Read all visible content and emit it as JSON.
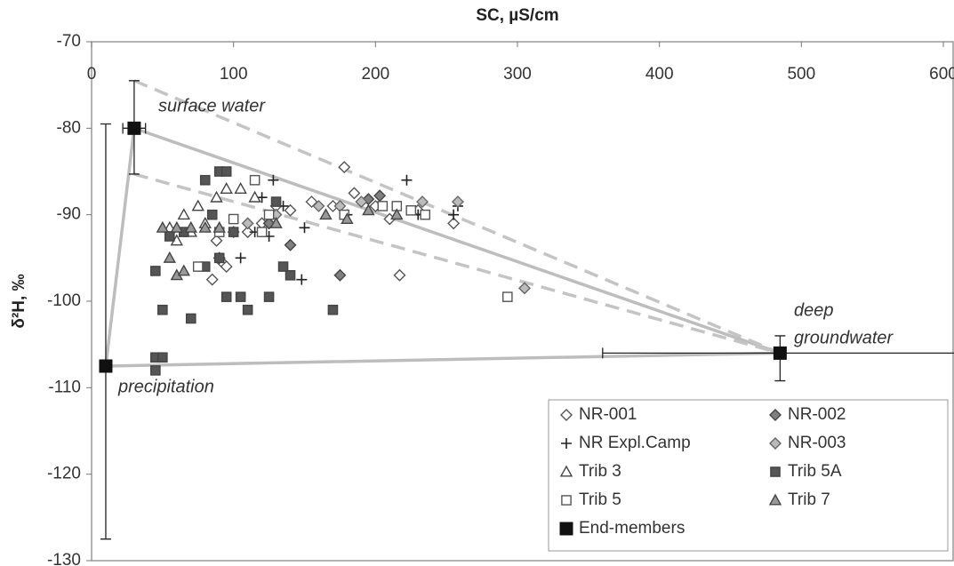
{
  "chart_data": {
    "type": "scatter",
    "x_label": "SC, µS/cm",
    "y_label": "δ²H, ‰",
    "xlim": [
      0,
      600
    ],
    "xticks": [
      0,
      100,
      200,
      300,
      400,
      500,
      600
    ],
    "ylim": [
      -130,
      -70
    ],
    "yticks": [
      -70,
      -80,
      -90,
      -100,
      -110,
      -120,
      -130
    ],
    "series": [
      {
        "name": "NR-001",
        "marker": "diamond",
        "color": "#555555",
        "fill": "#ffffff",
        "x": [
          88,
          92,
          95,
          85,
          100,
          110,
          120,
          130,
          140,
          155,
          170,
          178,
          185,
          200,
          210,
          217,
          230,
          255
        ],
        "values": [
          -93,
          -95.5,
          -96,
          -97.5,
          -92,
          -92,
          -91,
          -89,
          -89.5,
          -88.5,
          -89,
          -84.5,
          -87.5,
          -89,
          -90.5,
          -97,
          -89.5,
          -91
        ]
      },
      {
        "name": "NR-002",
        "marker": "diamond",
        "color": "#444444",
        "fill": "#808080",
        "x": [
          90,
          125,
          140,
          175,
          195,
          203
        ],
        "values": [
          -95,
          -91,
          -93.5,
          -97,
          -88.2,
          -87.8
        ]
      },
      {
        "name": "NR Expl.Camp",
        "marker": "plus",
        "color": "#222222",
        "fill": "none",
        "x": [
          105,
          115,
          120,
          125,
          128,
          135,
          148,
          150,
          180,
          222,
          230,
          255,
          258
        ],
        "values": [
          -95,
          -92,
          -88,
          -92.5,
          -86,
          -89,
          -97.5,
          -91.5,
          -90,
          -86,
          -90,
          -90,
          -89
        ]
      },
      {
        "name": "NR-003",
        "marker": "diamond",
        "color": "#666666",
        "fill": "#bbbbbb",
        "x": [
          110,
          130,
          160,
          175,
          190,
          233,
          258,
          305
        ],
        "values": [
          -91,
          -90,
          -89,
          -89,
          -88.5,
          -88.5,
          -88.5,
          -98.5
        ]
      },
      {
        "name": "Trib 3",
        "marker": "triangle",
        "color": "#444444",
        "fill": "#ffffff",
        "x": [
          55,
          60,
          65,
          70,
          75,
          80,
          88,
          95,
          105,
          115
        ],
        "values": [
          -91.5,
          -93,
          -90,
          -92,
          -89,
          -91,
          -88,
          -87,
          -87,
          -88
        ]
      },
      {
        "name": "Trib 5A",
        "marker": "square",
        "color": "#444444",
        "fill": "#555555",
        "x": [
          45,
          45,
          45,
          50,
          50,
          55,
          65,
          70,
          80,
          80,
          85,
          90,
          90,
          95,
          95,
          100,
          105,
          110,
          125,
          130,
          135,
          140,
          170
        ],
        "values": [
          -96.5,
          -106.5,
          -108,
          -101,
          -106.5,
          -92.5,
          -92,
          -102,
          -86,
          -96,
          -90,
          -85,
          -95,
          -85,
          -99.5,
          -92,
          -99.5,
          -101,
          -99.5,
          -88.5,
          -96,
          -97,
          -101
        ]
      },
      {
        "name": "Trib 5",
        "marker": "square",
        "color": "#555555",
        "fill": "#ffffff",
        "x": [
          75,
          90,
          100,
          115,
          120,
          125,
          178,
          205,
          215,
          225,
          235,
          293
        ],
        "values": [
          -96,
          -92,
          -90.5,
          -86,
          -92,
          -90,
          -90,
          -89,
          -89,
          -89.5,
          -90,
          -99.5
        ]
      },
      {
        "name": "Trib 7",
        "marker": "triangle",
        "color": "#444444",
        "fill": "#999999",
        "x": [
          50,
          55,
          60,
          60,
          65,
          70,
          80,
          90,
          130,
          165,
          180,
          195,
          215
        ],
        "values": [
          -91.5,
          -95,
          -91.5,
          -97,
          -96.5,
          -91.5,
          -91.5,
          -91.5,
          -91,
          -90,
          -90.5,
          -89.5,
          -90
        ]
      },
      {
        "name": "End-members",
        "marker": "square",
        "color": "#111111",
        "fill": "#111111",
        "x": [
          30,
          10,
          485
        ],
        "values": [
          -80,
          -107.5,
          -106
        ],
        "x_error": [
          8,
          0,
          125
        ],
        "y_error_plus": [
          5.5,
          28,
          2
        ],
        "y_error_minus": [
          5.3,
          20,
          3.2
        ]
      }
    ],
    "annotations": [
      "surface water",
      "precipitation",
      "deep",
      "groundwater"
    ]
  }
}
